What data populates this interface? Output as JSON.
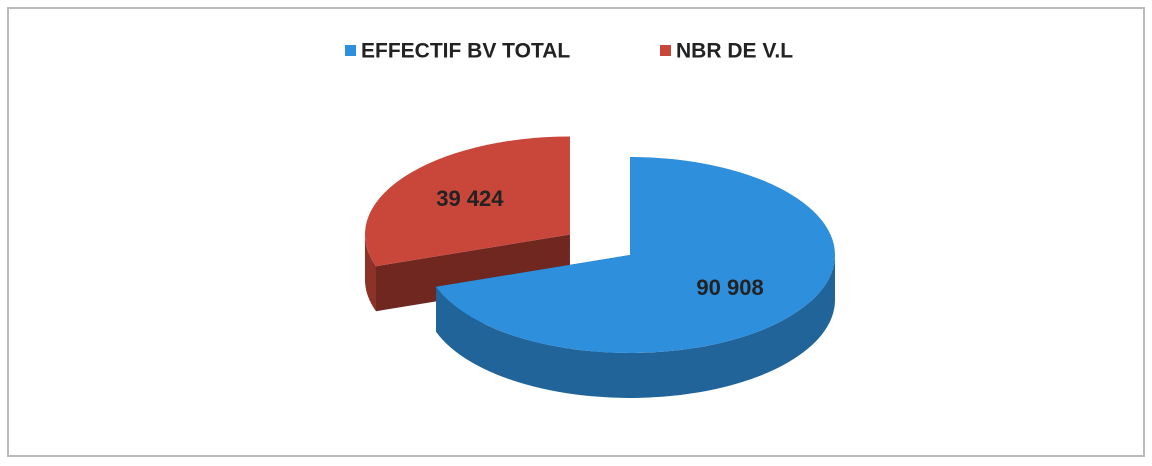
{
  "chart_data": {
    "type": "pie",
    "categories": [
      "EFFECTIF BV TOTAL",
      "NBR DE V.L"
    ],
    "values": [
      90908,
      39424
    ],
    "value_labels": [
      "90 908",
      "39 424"
    ],
    "colors": [
      "#2e8fdc",
      "#c9473a"
    ],
    "legend": "top"
  }
}
